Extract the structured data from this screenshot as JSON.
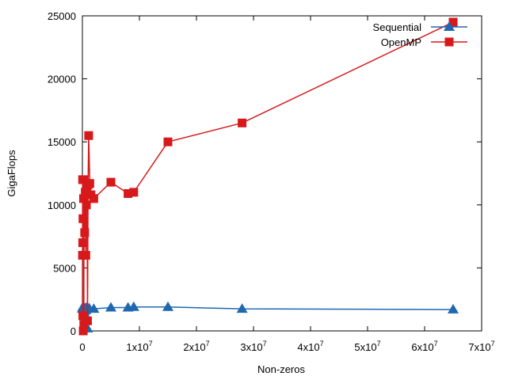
{
  "chart_data": {
    "type": "line",
    "xlabel": "Non-zeros",
    "ylabel": "GigaFlops",
    "xlim": [
      0,
      70000000
    ],
    "ylim": [
      0,
      25000
    ],
    "grid": false,
    "legend": "top-right",
    "x_ticks": [
      {
        "value": 0,
        "base": "0",
        "exp": ""
      },
      {
        "value": 10000000,
        "base": "1x10",
        "exp": "7"
      },
      {
        "value": 20000000,
        "base": "2x10",
        "exp": "7"
      },
      {
        "value": 30000000,
        "base": "3x10",
        "exp": "7"
      },
      {
        "value": 40000000,
        "base": "4x10",
        "exp": "7"
      },
      {
        "value": 50000000,
        "base": "5x10",
        "exp": "7"
      },
      {
        "value": 60000000,
        "base": "6x10",
        "exp": "7"
      },
      {
        "value": 70000000,
        "base": "7x10",
        "exp": "7"
      }
    ],
    "y_ticks": [
      {
        "value": 0,
        "label": "0"
      },
      {
        "value": 5000,
        "label": "5000"
      },
      {
        "value": 10000,
        "label": "10000"
      },
      {
        "value": 15000,
        "label": "15000"
      },
      {
        "value": 20000,
        "label": "20000"
      },
      {
        "value": 25000,
        "label": "25000"
      }
    ],
    "series": [
      {
        "name": "Sequential",
        "color": "#1f68b0",
        "marker": "triangle",
        "points": [
          [
            20000,
            1750
          ],
          [
            50000,
            1850
          ],
          [
            100000,
            1900
          ],
          [
            200000,
            1850
          ],
          [
            300000,
            1700
          ],
          [
            400000,
            1800
          ],
          [
            500000,
            1750
          ],
          [
            600000,
            1650
          ],
          [
            700000,
            1850
          ],
          [
            900000,
            200
          ],
          [
            1200000,
            1800
          ],
          [
            2000000,
            1750
          ],
          [
            5000000,
            1850
          ],
          [
            8000000,
            1850
          ],
          [
            9000000,
            1900
          ],
          [
            15000000,
            1900
          ],
          [
            28000000,
            1750
          ],
          [
            65000000,
            1700
          ]
        ]
      },
      {
        "name": "OpenMP",
        "color": "#d7191c",
        "marker": "square",
        "points": [
          [
            20000,
            6000
          ],
          [
            40000,
            12000
          ],
          [
            60000,
            7000
          ],
          [
            80000,
            1200
          ],
          [
            100000,
            8900
          ],
          [
            150000,
            0
          ],
          [
            200000,
            10500
          ],
          [
            250000,
            500
          ],
          [
            300000,
            12000
          ],
          [
            400000,
            7800
          ],
          [
            500000,
            11000
          ],
          [
            600000,
            6000
          ],
          [
            700000,
            10000
          ],
          [
            800000,
            11300
          ],
          [
            900000,
            800
          ],
          [
            1000000,
            11600
          ],
          [
            1100000,
            15500
          ],
          [
            1300000,
            11700
          ],
          [
            1500000,
            10800
          ],
          [
            2000000,
            10500
          ],
          [
            5000000,
            11800
          ],
          [
            8000000,
            10900
          ],
          [
            9000000,
            11000
          ],
          [
            15000000,
            15000
          ],
          [
            28000000,
            16500
          ],
          [
            65000000,
            24500
          ]
        ]
      }
    ]
  }
}
